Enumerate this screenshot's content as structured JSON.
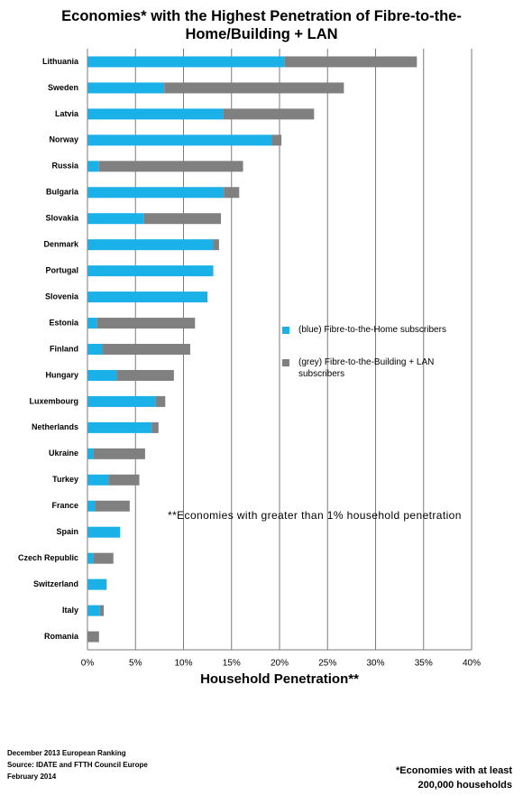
{
  "chart_data": {
    "type": "bar",
    "orientation": "horizontal",
    "stacked": true,
    "title": "Economies* with the Highest Penetration of Fibre-to-the-Home/Building + LAN",
    "x_label": "Household Penetration**",
    "annotation": "**Economies with greater than 1% household penetration",
    "source_lines": [
      "December 2013 European Ranking",
      "Source: IDATE and FTTH Council Europe",
      "February 2014"
    ],
    "footnote_lines": [
      "*Economies with at least",
      "200,000 households"
    ],
    "categories": [
      "Lithuania",
      "Sweden",
      "Latvia",
      "Norway",
      "Russia",
      "Bulgaria",
      "Slovakia",
      "Denmark",
      "Portugal",
      "Slovenia",
      "Estonia",
      "Finland",
      "Hungary",
      "Luxembourg",
      "Netherlands",
      "Ukraine",
      "Turkey",
      "France",
      "Spain",
      "Czech Republic",
      "Switzerland",
      "Italy",
      "Romania"
    ],
    "series": [
      {
        "name": "(blue) Fibre-to-the-Home subscribers",
        "color": "#1ab0e8",
        "values": [
          20.5,
          8.0,
          14.1,
          19.2,
          1.2,
          14.2,
          5.9,
          13.1,
          13.1,
          12.5,
          1.0,
          1.6,
          3.1,
          7.1,
          6.7,
          0.6,
          2.2,
          0.8,
          3.4,
          0.6,
          2.0,
          1.3,
          0
        ]
      },
      {
        "name": "(grey) Fibre-to-the-Building + LAN subscribers",
        "color": "#808080",
        "values": [
          13.8,
          18.7,
          9.5,
          1.0,
          15.0,
          1.6,
          8.0,
          0.6,
          0,
          0,
          10.2,
          9.1,
          5.9,
          1.0,
          0.7,
          5.4,
          3.2,
          3.6,
          0,
          2.1,
          0,
          0.4,
          1.2
        ]
      }
    ],
    "xlim": [
      0,
      40
    ],
    "xticks": [
      {
        "value": 0,
        "label": "0%"
      },
      {
        "value": 5,
        "label": "5%"
      },
      {
        "value": 10,
        "label": "10%"
      },
      {
        "value": 15,
        "label": "15%"
      },
      {
        "value": 20,
        "label": "20%"
      },
      {
        "value": 25,
        "label": "25%"
      },
      {
        "value": 30,
        "label": "30%"
      },
      {
        "value": 35,
        "label": "35%"
      },
      {
        "value": 40,
        "label": "40%"
      }
    ],
    "grid": true
  }
}
